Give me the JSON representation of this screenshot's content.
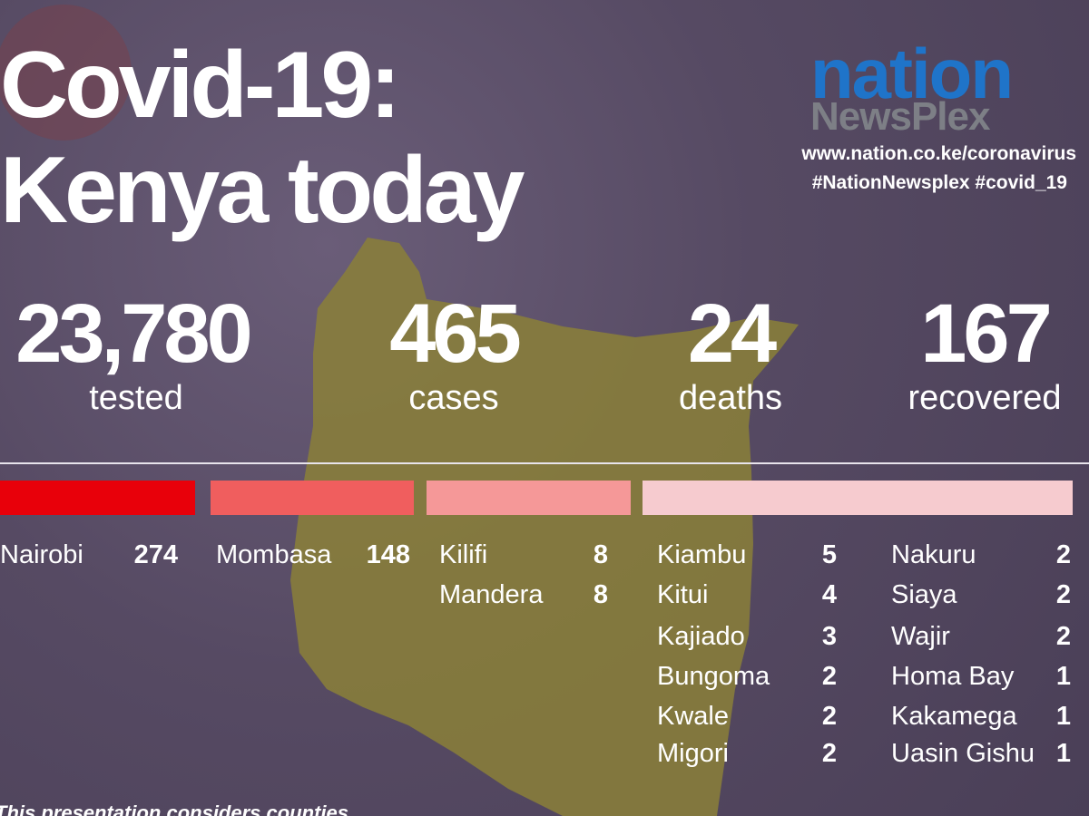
{
  "header": {
    "title_lines": [
      "Covid-19:",
      "Kenya today"
    ],
    "logo": {
      "top": "nation",
      "bottom": "NewsPlex"
    },
    "links": [
      "www.nation.co.ke/coronavirus",
      "#NationNewsplex #covid_19"
    ]
  },
  "stats": [
    {
      "value": "23,780",
      "label": "tested"
    },
    {
      "value": "465",
      "label": "cases"
    },
    {
      "value": "24",
      "label": "deaths"
    },
    {
      "value": "167",
      "label": "recovered"
    }
  ],
  "groups": [
    {
      "counties": [
        {
          "name": "Nairobi",
          "cases": 274
        }
      ]
    },
    {
      "counties": [
        {
          "name": "Mombasa",
          "cases": 148
        }
      ]
    },
    {
      "counties": [
        {
          "name": "Kilifi",
          "cases": 8
        },
        {
          "name": "Mandera",
          "cases": 8
        }
      ]
    },
    {
      "counties": [
        {
          "name": "Kiambu",
          "cases": 5
        },
        {
          "name": "Kitui",
          "cases": 4
        },
        {
          "name": "Kajiado",
          "cases": 3
        },
        {
          "name": "Bungoma",
          "cases": 2
        },
        {
          "name": "Kwale",
          "cases": 2
        },
        {
          "name": "Migori",
          "cases": 2
        }
      ]
    },
    {
      "counties": [
        {
          "name": "Nakuru",
          "cases": 2
        },
        {
          "name": "Siaya",
          "cases": 2
        },
        {
          "name": "Wajir",
          "cases": 2
        },
        {
          "name": "Homa Bay",
          "cases": 1
        },
        {
          "name": "Kakamega",
          "cases": 1
        },
        {
          "name": "Uasin Gishu",
          "cases": 1
        }
      ]
    }
  ],
  "footnote": "This presentation considers counties"
}
